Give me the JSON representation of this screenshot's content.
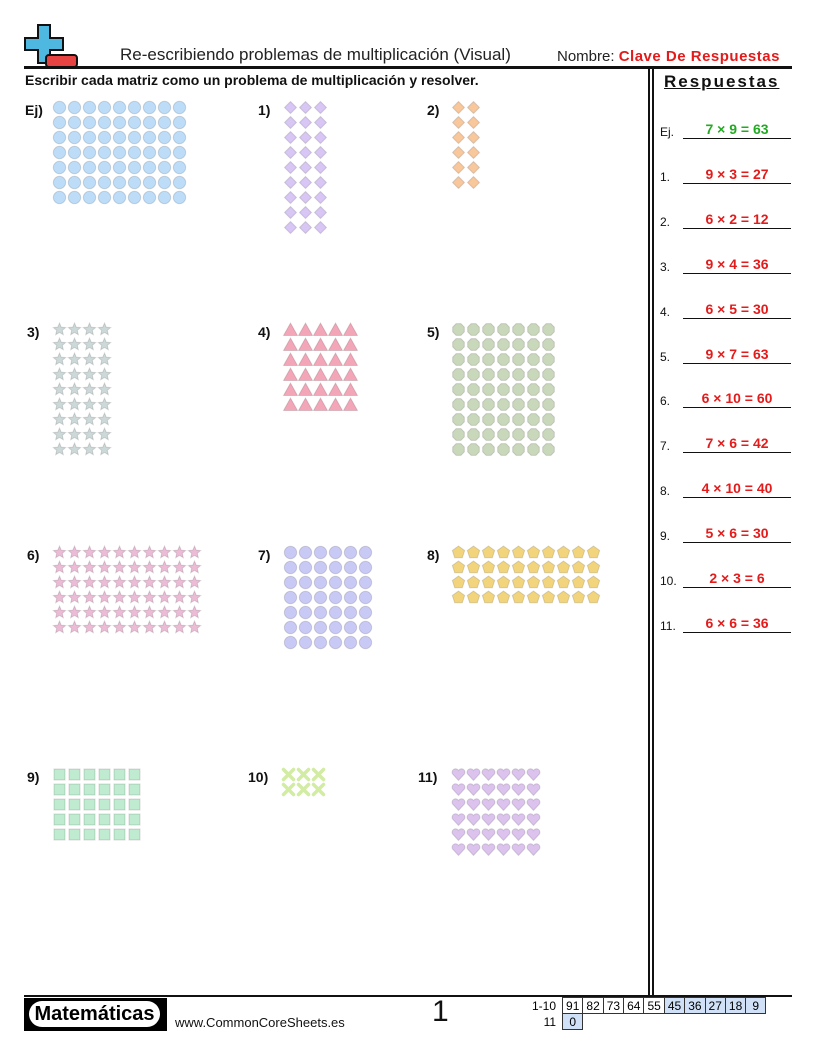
{
  "header": {
    "title": "Re-escribiendo problemas de multiplicación (Visual)",
    "name_label": "Nombre:",
    "name_value": "Clave De Respuestas"
  },
  "instructions": "Escribir cada matriz como un problema de multiplicación y resolver.",
  "answers_title": "Respuestas",
  "problems": [
    {
      "label": "Ej)",
      "rows": 7,
      "cols": 9,
      "shape": "circle",
      "color": "#bcdcf8"
    },
    {
      "label": "1)",
      "rows": 9,
      "cols": 3,
      "shape": "diamond",
      "color": "#d8c6f4"
    },
    {
      "label": "2)",
      "rows": 6,
      "cols": 2,
      "shape": "diamond",
      "color": "#f9c79c"
    },
    {
      "label": "3)",
      "rows": 9,
      "cols": 4,
      "shape": "star",
      "color": "#cdd9d9"
    },
    {
      "label": "4)",
      "rows": 6,
      "cols": 5,
      "shape": "triangle",
      "color": "#f3a6b8"
    },
    {
      "label": "5)",
      "rows": 9,
      "cols": 7,
      "shape": "octagon",
      "color": "#c9d8bb"
    },
    {
      "label": "6)",
      "rows": 6,
      "cols": 10,
      "shape": "star",
      "color": "#ecbcd6"
    },
    {
      "label": "7)",
      "rows": 7,
      "cols": 6,
      "shape": "circle",
      "color": "#c9c9f5"
    },
    {
      "label": "8)",
      "rows": 4,
      "cols": 10,
      "shape": "pentagon",
      "color": "#f1d47c"
    },
    {
      "label": "9)",
      "rows": 5,
      "cols": 6,
      "shape": "square",
      "color": "#bfecd0"
    },
    {
      "label": "10)",
      "rows": 2,
      "cols": 3,
      "shape": "x",
      "color": "#d2eca4"
    },
    {
      "label": "11)",
      "rows": 6,
      "cols": 6,
      "shape": "heart",
      "color": "#dcc3ee"
    }
  ],
  "answers": [
    {
      "num": "Ej.",
      "text": "7 × 9 = 63",
      "color": "#22aa22"
    },
    {
      "num": "1.",
      "text": "9 × 3 = 27",
      "color": "#e31b1b"
    },
    {
      "num": "2.",
      "text": "6 × 2 = 12",
      "color": "#e31b1b"
    },
    {
      "num": "3.",
      "text": "9 × 4 = 36",
      "color": "#e31b1b"
    },
    {
      "num": "4.",
      "text": "6 × 5 = 30",
      "color": "#e31b1b"
    },
    {
      "num": "5.",
      "text": "9 × 7 = 63",
      "color": "#e31b1b"
    },
    {
      "num": "6.",
      "text": "6 × 10 = 60",
      "color": "#e31b1b"
    },
    {
      "num": "7.",
      "text": "7 × 6 = 42",
      "color": "#e31b1b"
    },
    {
      "num": "8.",
      "text": "4 × 10 = 40",
      "color": "#e31b1b"
    },
    {
      "num": "9.",
      "text": "5 × 6 = 30",
      "color": "#e31b1b"
    },
    {
      "num": "10.",
      "text": "2 × 3 = 6",
      "color": "#e31b1b"
    },
    {
      "num": "11.",
      "text": "6 × 6 = 36",
      "color": "#e31b1b"
    }
  ],
  "footer": {
    "brand": "Matemáticas",
    "site": "www.CommonCoreSheets.es",
    "page": "1",
    "score_rows": [
      {
        "label": "1-10",
        "cells": [
          "91",
          "82",
          "73",
          "64",
          "55",
          "45",
          "36",
          "27",
          "18",
          "9"
        ]
      },
      {
        "label": "11",
        "cells": [
          "0"
        ]
      }
    ]
  }
}
